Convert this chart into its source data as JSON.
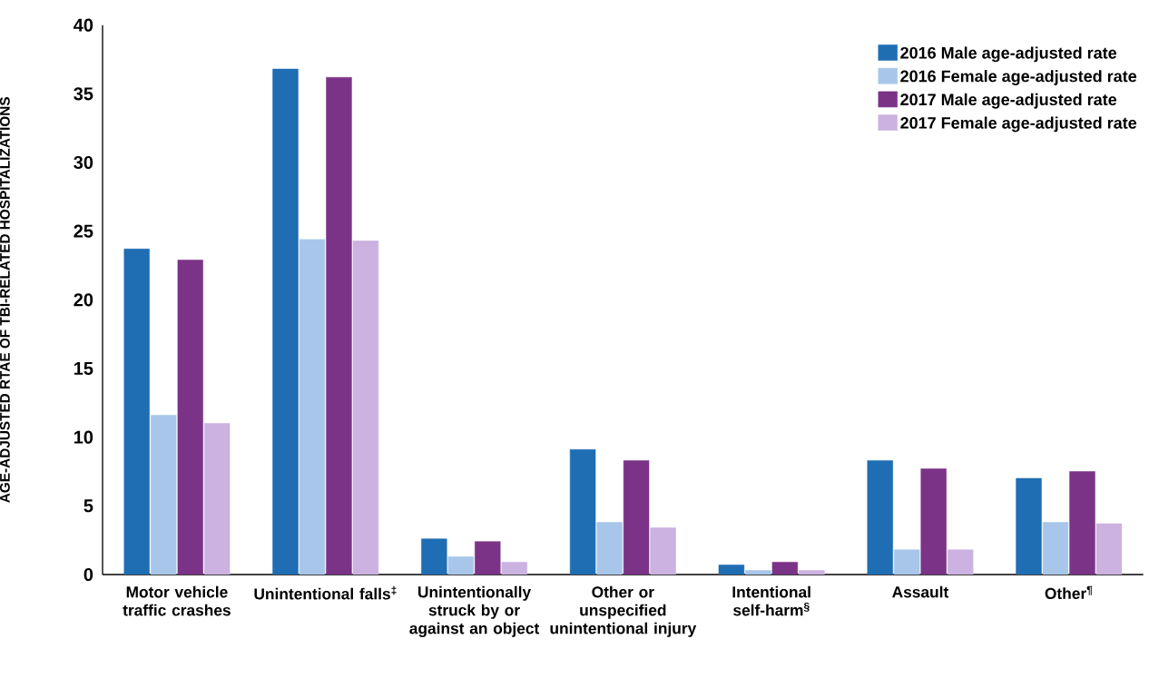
{
  "chart_data": {
    "type": "bar",
    "ylabel": "AGE-ADJUSTED RTAE OF TBI-RELATED HOSPITALIZATIONS",
    "categories": [
      "Motor vehicle traffic crashes",
      "Unintentional falls$^{‡}$",
      "Unintentionally struck by or against an object",
      "Other or unspecified unintentional injury",
      "Intentional self-harm$^{§}$",
      "Assault",
      "Other$^{¶}$"
    ],
    "series": [
      {
        "name": "2016 Male age-adjusted rate",
        "color": "#1f6db3",
        "values": [
          23.7,
          36.8,
          2.6,
          9.1,
          0.7,
          8.3,
          7.0
        ]
      },
      {
        "name": "2016 Female age-adjusted rate",
        "color": "#a8c6ea",
        "values": [
          11.6,
          24.4,
          1.3,
          3.8,
          0.3,
          1.8,
          3.8
        ]
      },
      {
        "name": "2017 Male age-adjusted rate",
        "color": "#7b3387",
        "values": [
          22.9,
          36.2,
          2.4,
          8.3,
          0.9,
          7.7,
          7.5
        ]
      },
      {
        "name": "2017 Female age-adjusted rate",
        "color": "#cbb2e0",
        "values": [
          11.0,
          24.3,
          0.9,
          3.4,
          0.3,
          1.8,
          3.7
        ]
      }
    ],
    "ylim": [
      0,
      40
    ],
    "yticks": [
      0,
      5,
      10,
      15,
      20,
      25,
      30,
      35,
      40
    ],
    "legend": "top right",
    "grid": false
  }
}
